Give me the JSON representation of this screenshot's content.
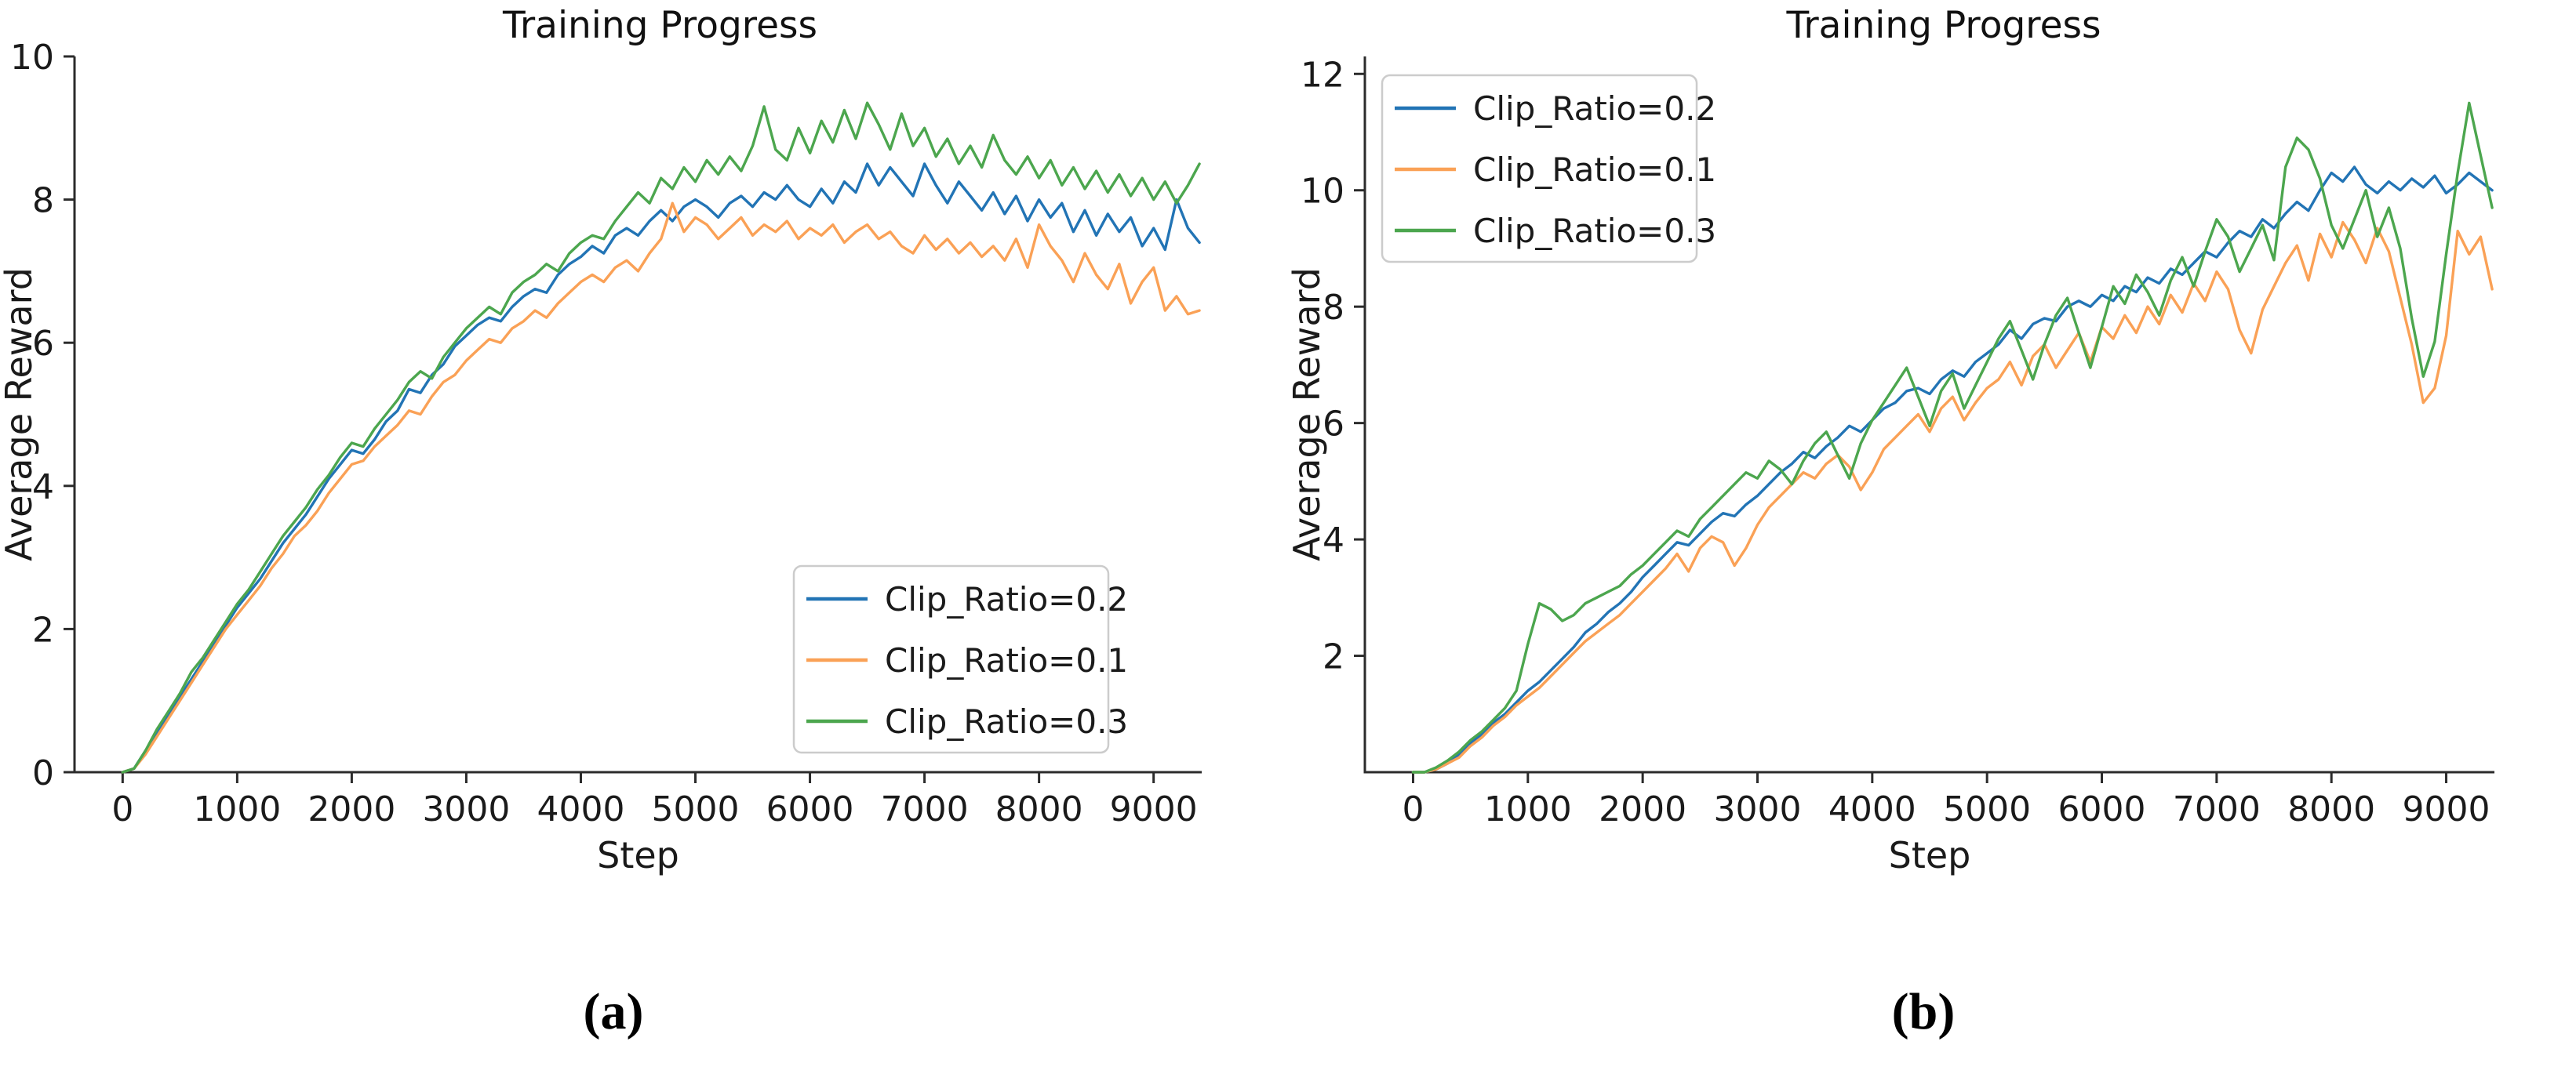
{
  "page": {
    "background": "#ffffff"
  },
  "figure": {
    "captions": [
      {
        "label": "(a)"
      },
      {
        "label": "(b)"
      }
    ]
  },
  "colors": {
    "axis": "#2b2b2b",
    "text": "#1a1a1a",
    "legend_border": "#cccccc",
    "clip_ratio_02": "#2274b5",
    "clip_ratio_01": "#faa156",
    "clip_ratio_03": "#4ca64e"
  },
  "chart_data": [
    {
      "id": "a",
      "type": "line",
      "title": "Training Progress",
      "xlabel": "Step",
      "ylabel": "Average Reward",
      "xlim": [
        -420,
        9420
      ],
      "ylim": [
        0,
        10
      ],
      "xticks": [
        0,
        1000,
        2000,
        3000,
        4000,
        5000,
        6000,
        7000,
        8000,
        9000
      ],
      "yticks": [
        0,
        2,
        4,
        6,
        8,
        10
      ],
      "grid": false,
      "legend_position": "lower right",
      "x_start": 0,
      "x_step": 100,
      "series": [
        {
          "name": "Clip_Ratio=0.2",
          "color": "#2274b5",
          "values": [
            0.0,
            0.05,
            0.3,
            0.55,
            0.8,
            1.05,
            1.3,
            1.55,
            1.8,
            2.05,
            2.3,
            2.5,
            2.7,
            2.95,
            3.2,
            3.4,
            3.6,
            3.85,
            4.1,
            4.3,
            4.5,
            4.45,
            4.65,
            4.9,
            5.05,
            5.35,
            5.3,
            5.55,
            5.7,
            5.95,
            6.1,
            6.25,
            6.35,
            6.3,
            6.5,
            6.65,
            6.75,
            6.7,
            6.95,
            7.1,
            7.2,
            7.35,
            7.25,
            7.5,
            7.6,
            7.5,
            7.7,
            7.85,
            7.7,
            7.9,
            8.0,
            7.9,
            7.75,
            7.95,
            8.05,
            7.9,
            8.1,
            8.0,
            8.2,
            8.0,
            7.9,
            8.15,
            7.95,
            8.25,
            8.1,
            8.5,
            8.2,
            8.45,
            8.25,
            8.05,
            8.5,
            8.2,
            7.95,
            8.25,
            8.05,
            7.85,
            8.1,
            7.8,
            8.05,
            7.7,
            8.0,
            7.75,
            7.95,
            7.55,
            7.85,
            7.5,
            7.8,
            7.55,
            7.75,
            7.35,
            7.6,
            7.3,
            8.0,
            7.6,
            7.4
          ]
        },
        {
          "name": "Clip_Ratio=0.1",
          "color": "#faa156",
          "values": [
            0.0,
            0.05,
            0.25,
            0.5,
            0.75,
            1.0,
            1.25,
            1.5,
            1.75,
            2.0,
            2.2,
            2.4,
            2.6,
            2.85,
            3.05,
            3.3,
            3.45,
            3.65,
            3.9,
            4.1,
            4.3,
            4.35,
            4.55,
            4.7,
            4.85,
            5.05,
            5.0,
            5.25,
            5.45,
            5.55,
            5.75,
            5.9,
            6.05,
            6.0,
            6.2,
            6.3,
            6.45,
            6.35,
            6.55,
            6.7,
            6.85,
            6.95,
            6.85,
            7.05,
            7.15,
            7.0,
            7.25,
            7.45,
            7.95,
            7.55,
            7.75,
            7.65,
            7.45,
            7.6,
            7.75,
            7.5,
            7.65,
            7.55,
            7.7,
            7.45,
            7.6,
            7.5,
            7.65,
            7.4,
            7.55,
            7.65,
            7.45,
            7.55,
            7.35,
            7.25,
            7.5,
            7.3,
            7.45,
            7.25,
            7.4,
            7.2,
            7.35,
            7.15,
            7.45,
            7.05,
            7.65,
            7.35,
            7.15,
            6.85,
            7.25,
            6.95,
            6.75,
            7.1,
            6.55,
            6.85,
            7.05,
            6.45,
            6.65,
            6.4,
            6.45
          ]
        },
        {
          "name": "Clip_Ratio=0.3",
          "color": "#4ca64e",
          "values": [
            0.0,
            0.05,
            0.3,
            0.6,
            0.85,
            1.1,
            1.4,
            1.6,
            1.85,
            2.1,
            2.35,
            2.55,
            2.8,
            3.05,
            3.3,
            3.5,
            3.7,
            3.95,
            4.15,
            4.4,
            4.6,
            4.55,
            4.8,
            5.0,
            5.2,
            5.45,
            5.6,
            5.5,
            5.8,
            6.0,
            6.2,
            6.35,
            6.5,
            6.4,
            6.7,
            6.85,
            6.95,
            7.1,
            7.0,
            7.25,
            7.4,
            7.5,
            7.45,
            7.7,
            7.9,
            8.1,
            7.95,
            8.3,
            8.15,
            8.45,
            8.25,
            8.55,
            8.35,
            8.6,
            8.4,
            8.75,
            9.3,
            8.7,
            8.55,
            9.0,
            8.65,
            9.1,
            8.8,
            9.25,
            8.85,
            9.35,
            9.05,
            8.7,
            9.2,
            8.75,
            9.0,
            8.6,
            8.85,
            8.5,
            8.75,
            8.45,
            8.9,
            8.55,
            8.35,
            8.6,
            8.3,
            8.55,
            8.2,
            8.45,
            8.15,
            8.4,
            8.1,
            8.35,
            8.05,
            8.3,
            8.0,
            8.25,
            7.95,
            8.2,
            8.5
          ]
        }
      ]
    },
    {
      "id": "b",
      "type": "line",
      "title": "Training Progress",
      "xlabel": "Step",
      "ylabel": "Average Reward",
      "xlim": [
        -420,
        9420
      ],
      "ylim": [
        0,
        12.3
      ],
      "xticks": [
        0,
        1000,
        2000,
        3000,
        4000,
        5000,
        6000,
        7000,
        8000,
        9000
      ],
      "yticks": [
        2,
        4,
        6,
        8,
        10,
        12
      ],
      "grid": false,
      "legend_position": "upper left",
      "x_start": 0,
      "x_step": 100,
      "series": [
        {
          "name": "Clip_Ratio=0.2",
          "color": "#2274b5",
          "values": [
            0.0,
            0.0,
            0.05,
            0.15,
            0.3,
            0.5,
            0.65,
            0.85,
            1.0,
            1.2,
            1.4,
            1.55,
            1.75,
            1.95,
            2.15,
            2.4,
            2.55,
            2.75,
            2.9,
            3.1,
            3.35,
            3.55,
            3.75,
            3.95,
            3.9,
            4.1,
            4.3,
            4.45,
            4.4,
            4.6,
            4.75,
            4.95,
            5.15,
            5.3,
            5.5,
            5.4,
            5.6,
            5.75,
            5.95,
            5.85,
            6.05,
            6.25,
            6.35,
            6.55,
            6.6,
            6.5,
            6.75,
            6.9,
            6.8,
            7.05,
            7.2,
            7.35,
            7.6,
            7.45,
            7.7,
            7.8,
            7.75,
            8.0,
            8.1,
            8.0,
            8.2,
            8.1,
            8.35,
            8.25,
            8.5,
            8.4,
            8.65,
            8.55,
            8.75,
            8.95,
            8.85,
            9.1,
            9.3,
            9.2,
            9.5,
            9.35,
            9.6,
            9.8,
            9.65,
            10.0,
            10.3,
            10.15,
            10.4,
            10.1,
            9.95,
            10.15,
            10.0,
            10.2,
            10.05,
            10.25,
            9.95,
            10.1,
            10.3,
            10.15,
            10.0
          ]
        },
        {
          "name": "Clip_Ratio=0.1",
          "color": "#faa156",
          "values": [
            0.0,
            0.0,
            0.05,
            0.15,
            0.25,
            0.45,
            0.6,
            0.8,
            0.95,
            1.15,
            1.3,
            1.45,
            1.65,
            1.85,
            2.05,
            2.25,
            2.4,
            2.55,
            2.7,
            2.9,
            3.1,
            3.3,
            3.5,
            3.75,
            3.45,
            3.85,
            4.05,
            3.95,
            3.55,
            3.85,
            4.25,
            4.55,
            4.75,
            4.95,
            5.15,
            5.05,
            5.3,
            5.45,
            5.25,
            4.85,
            5.15,
            5.55,
            5.75,
            5.95,
            6.15,
            5.85,
            6.25,
            6.45,
            6.05,
            6.35,
            6.6,
            6.75,
            7.05,
            6.65,
            7.15,
            7.35,
            6.95,
            7.25,
            7.55,
            7.05,
            7.65,
            7.45,
            7.85,
            7.55,
            8.0,
            7.7,
            8.2,
            7.9,
            8.4,
            8.1,
            8.6,
            8.3,
            7.6,
            7.2,
            7.95,
            8.35,
            8.75,
            9.05,
            8.45,
            9.25,
            8.85,
            9.45,
            9.15,
            8.75,
            9.35,
            8.95,
            8.15,
            7.35,
            6.35,
            6.6,
            7.5,
            9.3,
            8.9,
            9.2,
            8.3
          ]
        },
        {
          "name": "Clip_Ratio=0.3",
          "color": "#4ca64e",
          "values": [
            0.0,
            0.0,
            0.08,
            0.2,
            0.35,
            0.55,
            0.7,
            0.9,
            1.1,
            1.4,
            2.2,
            2.9,
            2.8,
            2.6,
            2.7,
            2.9,
            3.0,
            3.1,
            3.2,
            3.4,
            3.55,
            3.75,
            3.95,
            4.15,
            4.05,
            4.35,
            4.55,
            4.75,
            4.95,
            5.15,
            5.05,
            5.35,
            5.2,
            4.95,
            5.35,
            5.65,
            5.85,
            5.45,
            5.05,
            5.65,
            6.05,
            6.35,
            6.65,
            6.95,
            6.45,
            5.95,
            6.55,
            6.85,
            6.25,
            6.65,
            7.05,
            7.45,
            7.75,
            7.25,
            6.75,
            7.35,
            7.85,
            8.15,
            7.55,
            6.95,
            7.65,
            8.35,
            8.05,
            8.55,
            8.25,
            7.85,
            8.45,
            8.85,
            8.35,
            8.95,
            9.5,
            9.2,
            8.6,
            9.0,
            9.4,
            8.8,
            10.4,
            10.9,
            10.7,
            10.2,
            9.4,
            9.0,
            9.5,
            10.0,
            9.2,
            9.7,
            9.0,
            7.8,
            6.8,
            7.4,
            8.9,
            10.3,
            11.5,
            10.6,
            9.7
          ]
        }
      ]
    }
  ]
}
